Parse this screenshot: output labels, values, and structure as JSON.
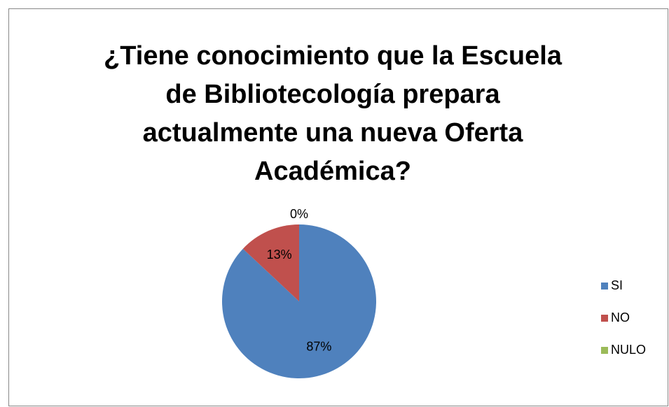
{
  "chart_data": {
    "type": "pie",
    "title": [
      "¿Tiene conocimiento que la Escuela",
      "de Bibliotecología prepara",
      "actualmente una nueva Oferta",
      "Académica?"
    ],
    "categories": [
      "SI",
      "NO",
      "NULO"
    ],
    "values": [
      87,
      13,
      0
    ],
    "value_labels": [
      "87%",
      "13%",
      "0%"
    ],
    "colors": [
      "#4f81bd",
      "#c0504d",
      "#9bbb59"
    ],
    "legend": "right"
  }
}
